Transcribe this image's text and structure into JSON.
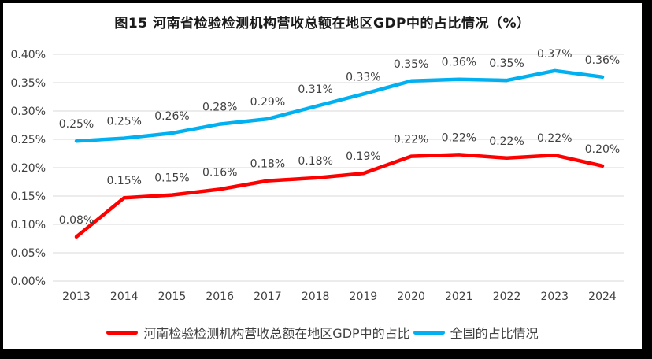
{
  "title": "图15  河南省检验检测机构营收总额在地区GDP中的占比情况（%）",
  "colors": {
    "henan": "#FF0000",
    "national": "#00B0F0",
    "gridline": "#D9D9D9",
    "text": "#404040",
    "frame": "#000000",
    "background": "#FFFFFF"
  },
  "chart_data": {
    "type": "line",
    "categories": [
      "2013",
      "2014",
      "2015",
      "2016",
      "2017",
      "2018",
      "2019",
      "2020",
      "2021",
      "2022",
      "2023",
      "2024"
    ],
    "series": [
      {
        "name": "河南检验检测机构营收总额在地区GDP中的占比",
        "color_key": "henan",
        "values": [
          0.08,
          0.15,
          0.15,
          0.16,
          0.18,
          0.18,
          0.19,
          0.22,
          0.22,
          0.22,
          0.22,
          0.2
        ],
        "labels": [
          "0.08%",
          "0.15%",
          "0.15%",
          "0.16%",
          "0.18%",
          "0.18%",
          "0.19%",
          "0.22%",
          "0.22%",
          "0.22%",
          "0.22%",
          "0.20%"
        ],
        "values_render": [
          0.078,
          0.147,
          0.152,
          0.162,
          0.177,
          0.182,
          0.19,
          0.22,
          0.223,
          0.217,
          0.222,
          0.203
        ]
      },
      {
        "name": "全国的占比情况",
        "color_key": "national",
        "values": [
          0.25,
          0.25,
          0.26,
          0.28,
          0.29,
          0.31,
          0.33,
          0.35,
          0.36,
          0.35,
          0.37,
          0.36
        ],
        "labels": [
          "0.25%",
          "0.25%",
          "0.26%",
          "0.28%",
          "0.29%",
          "0.31%",
          "0.33%",
          "0.35%",
          "0.36%",
          "0.35%",
          "0.37%",
          "0.36%"
        ],
        "values_render": [
          0.247,
          0.252,
          0.261,
          0.277,
          0.286,
          0.308,
          0.33,
          0.353,
          0.356,
          0.354,
          0.371,
          0.36
        ]
      }
    ],
    "yticks": [
      "0.00%",
      "0.05%",
      "0.10%",
      "0.15%",
      "0.20%",
      "0.25%",
      "0.30%",
      "0.35%",
      "0.40%"
    ],
    "ylim": [
      0,
      0.4
    ],
    "y_tick_step": 0.05,
    "unit": "%",
    "xlabel": "",
    "ylabel": "",
    "grid": true,
    "legend_position": "bottom"
  }
}
